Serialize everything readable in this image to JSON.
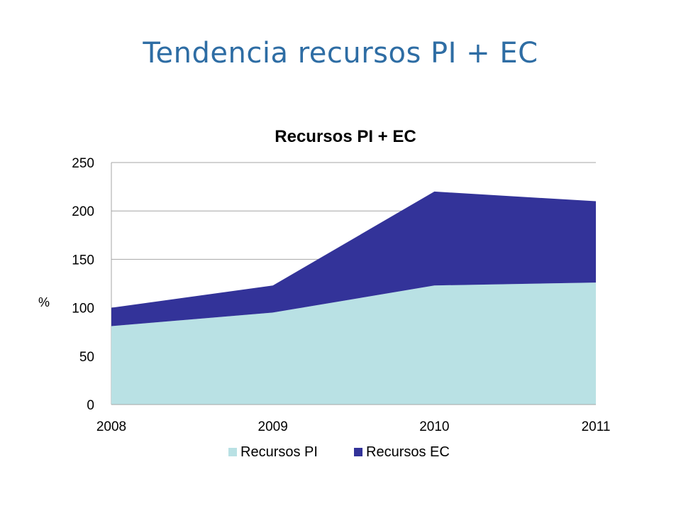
{
  "slide": {
    "title": "Tendencia recursos PI + EC"
  },
  "chart_data": {
    "type": "area",
    "stacked": true,
    "title": "Recursos PI + EC",
    "xlabel": "",
    "ylabel": "%",
    "x": [
      "2008",
      "2009",
      "2010",
      "2011"
    ],
    "ylim": [
      0,
      250
    ],
    "yticks": [
      0,
      50,
      100,
      150,
      200,
      250
    ],
    "grid": true,
    "legend_position": "bottom",
    "series": [
      {
        "name": "Recursos PI",
        "values": [
          81,
          95,
          123,
          126
        ],
        "color": "#b9e1e4"
      },
      {
        "name": "Recursos EC",
        "values": [
          19,
          28,
          97,
          84
        ],
        "color": "#333399"
      }
    ]
  }
}
